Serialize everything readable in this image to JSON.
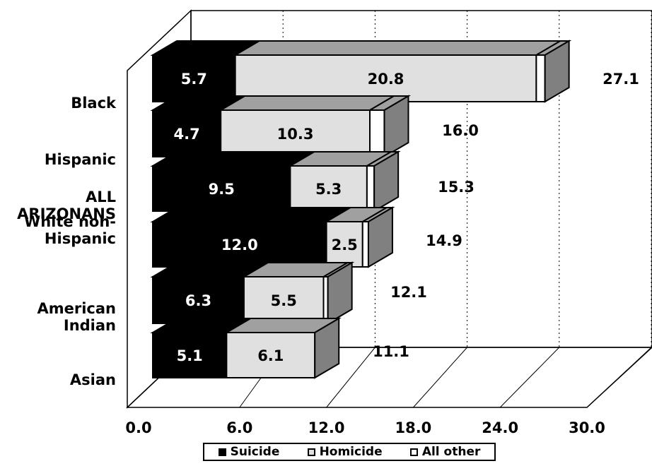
{
  "chart_data": {
    "type": "bar",
    "orientation": "horizontal",
    "stacked": true,
    "three_d": true,
    "categories": [
      "Black",
      "Hispanic",
      "ALL ARIZONANS",
      "White non-Hispanic",
      "American Indian",
      "Asian"
    ],
    "category_labels": [
      [
        "Black"
      ],
      [
        "Hispanic"
      ],
      [
        "ALL",
        "ARIZONANS"
      ],
      [
        "White non-",
        "Hispanic"
      ],
      [
        "American",
        "Indian"
      ],
      [
        "Asian"
      ]
    ],
    "series": [
      {
        "name": "Suicide",
        "values": [
          5.7,
          4.7,
          9.5,
          12.0,
          6.3,
          5.1
        ],
        "labels": [
          "5.7",
          "4.7",
          "9.5",
          "12.0",
          "6.3",
          "5.1"
        ],
        "color": "#000000"
      },
      {
        "name": "Homicide",
        "values": [
          20.8,
          10.3,
          5.3,
          2.5,
          5.5,
          6.1
        ],
        "labels": [
          "20.8",
          "10.3",
          "5.3",
          "2.5",
          "5.5",
          "6.1"
        ],
        "color": "#e0e0e0"
      },
      {
        "name": "All other",
        "values": [
          0.6,
          1.0,
          0.5,
          0.4,
          0.3,
          0.0
        ],
        "color": "#ffffff"
      }
    ],
    "totals": [
      "27.1",
      "16.0",
      "15.3",
      "14.9",
      "12.1",
      "11.1"
    ],
    "xlim": [
      0,
      30
    ],
    "x_ticks": [
      "0.0",
      "6.0",
      "12.0",
      "18.0",
      "24.0",
      "30.0"
    ],
    "grid": true,
    "legend_position": "bottom"
  },
  "colors": {
    "suicide": "#000000",
    "homicide": "#e0e0e0",
    "all_other": "#ffffff",
    "side_face": "#808080",
    "top_face": "#a0a0a0"
  }
}
